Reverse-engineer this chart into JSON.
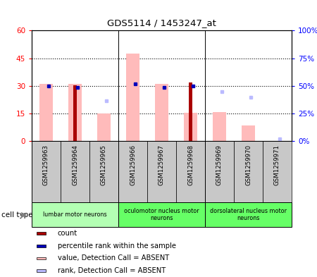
{
  "title": "GDS5114 / 1453247_at",
  "samples": [
    "GSM1259963",
    "GSM1259964",
    "GSM1259965",
    "GSM1259966",
    "GSM1259967",
    "GSM1259968",
    "GSM1259969",
    "GSM1259970",
    "GSM1259971"
  ],
  "count_values": [
    null,
    30.5,
    null,
    null,
    null,
    32.0,
    null,
    null,
    null
  ],
  "rank_values": [
    29.8,
    29.0,
    null,
    31.0,
    29.3,
    30.0,
    null,
    null,
    null
  ],
  "absent_value_bars": [
    31.0,
    31.0,
    15.0,
    47.5,
    31.0,
    15.5,
    16.0,
    8.5,
    null
  ],
  "absent_rank_dots": [
    null,
    null,
    22.0,
    null,
    null,
    null,
    27.0,
    24.0,
    1.5
  ],
  "ylim_left": [
    0,
    60
  ],
  "ylim_right": [
    0,
    100
  ],
  "yticks_left": [
    0,
    15,
    30,
    45,
    60
  ],
  "yticks_right": [
    0,
    25,
    50,
    75,
    100
  ],
  "ytick_labels_left": [
    "0",
    "15",
    "30",
    "45",
    "60"
  ],
  "ytick_labels_right": [
    "0%",
    "25%",
    "50%",
    "75%",
    "100%"
  ],
  "cell_type_groups": [
    {
      "label": "lumbar motor neurons",
      "start": 0,
      "end": 3,
      "color": "#b3ffb3"
    },
    {
      "label": "oculomotor nucleus motor\nneurons",
      "start": 3,
      "end": 6,
      "color": "#66ff66"
    },
    {
      "label": "dorsolateral nucleus motor\nneurons",
      "start": 6,
      "end": 9,
      "color": "#66ff66"
    }
  ],
  "color_dark_red": "#aa0000",
  "color_dark_blue": "#0000bb",
  "color_pink": "#ffbbbb",
  "color_light_blue": "#bbbbff",
  "color_gray_bg": "#c8c8c8",
  "color_white": "#ffffff"
}
